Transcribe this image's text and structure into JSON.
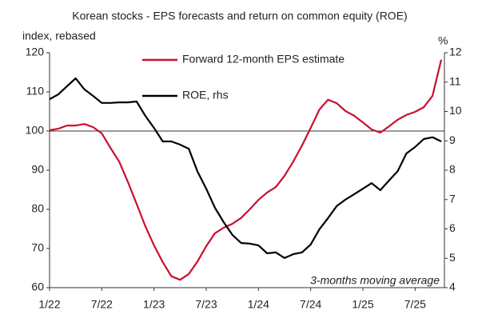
{
  "chart_data": {
    "type": "line",
    "title": "Korean stocks - EPS forecasts and return on common equity (ROE)",
    "y_label": "index, rebased",
    "y2_label": "%",
    "annotation": "3-months moving average",
    "categories": [
      "1/22",
      null,
      null,
      null,
      null,
      null,
      "7/22",
      null,
      null,
      null,
      null,
      null,
      "1/23",
      null,
      null,
      null,
      null,
      null,
      "7/23",
      null,
      null,
      null,
      null,
      null,
      "1/24",
      null,
      null,
      null,
      null,
      null,
      "7/24",
      null,
      null,
      null,
      null,
      null,
      "1/25",
      null,
      null,
      null,
      null,
      null,
      "7/25",
      null,
      null,
      null
    ],
    "series": [
      {
        "name": "Forward 12-month EPS estimate",
        "color": "#c8102e",
        "axis": "y",
        "values": [
          100.2,
          100.6,
          101.4,
          101.4,
          101.8,
          101,
          99.4,
          95.7,
          92.2,
          87,
          81.4,
          75.7,
          70.8,
          66.5,
          62.9,
          62,
          63.5,
          66.7,
          70.6,
          73.9,
          75.3,
          76.3,
          77.8,
          80,
          82.4,
          84.3,
          85.7,
          88.6,
          92.2,
          96.3,
          100.8,
          105.5,
          108,
          107.1,
          105.1,
          103.9,
          102.2,
          100.4,
          99.6,
          101.2,
          102.9,
          104.1,
          104.9,
          106.1,
          109,
          118.2
        ]
      },
      {
        "name": "ROE, rhs",
        "color": "#000000",
        "axis": "y2",
        "values": [
          10.42,
          10.58,
          10.86,
          11.13,
          10.75,
          10.53,
          10.29,
          10.29,
          10.31,
          10.31,
          10.34,
          9.85,
          9.44,
          8.98,
          8.98,
          8.87,
          8.73,
          7.95,
          7.37,
          6.72,
          6.23,
          5.8,
          5.52,
          5.5,
          5.44,
          5.17,
          5.2,
          5.01,
          5.14,
          5.2,
          5.47,
          5.99,
          6.37,
          6.78,
          7.0,
          7.18,
          7.37,
          7.56,
          7.32,
          7.65,
          7.97,
          8.57,
          8.79,
          9.06,
          9.12,
          8.98
        ]
      }
    ],
    "ylim": [
      60,
      120
    ],
    "yticks": [
      60,
      70,
      80,
      90,
      100,
      110,
      120
    ],
    "y2lim": [
      4,
      12
    ],
    "y2ticks": [
      4,
      5,
      6,
      7,
      8,
      9,
      10,
      11,
      12
    ],
    "reference_line": 100
  }
}
